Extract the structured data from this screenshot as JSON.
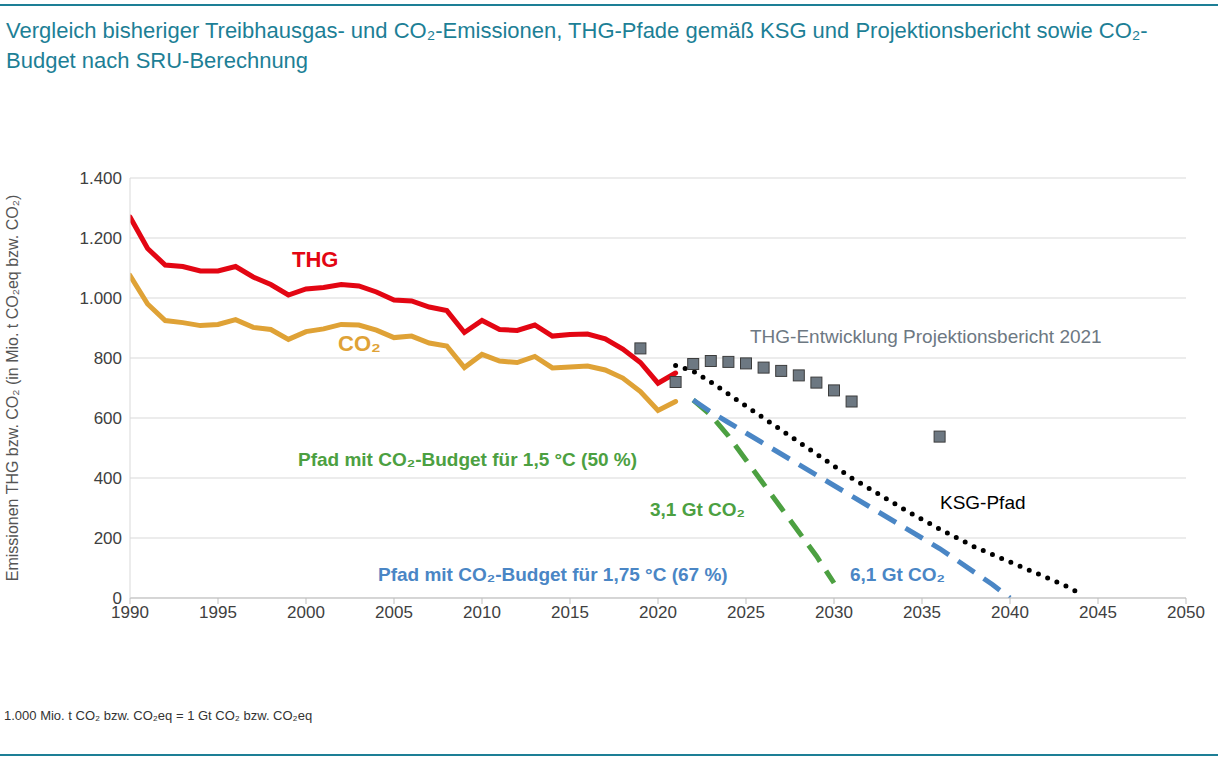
{
  "chart_data": {
    "type": "line",
    "title": "Vergleich bisheriger Treibhausgas- und CO₂-Emissionen, THG-Pfade gemäß KSG und Projektionsbericht sowie CO₂-Budget nach SRU-Berechnung",
    "y_label": "Emissionen THG bzw. CO₂ (in Mio. t CO₂eq bzw. CO₂)",
    "footnote": "1.000 Mio. t CO₂ bzw. CO₂eq = 1 Gt CO₂ bzw. CO₂eq",
    "xlim": [
      1990,
      2050
    ],
    "xticks": [
      1990,
      1995,
      2000,
      2005,
      2010,
      2015,
      2020,
      2025,
      2030,
      2035,
      2040,
      2045,
      2050
    ],
    "ylim": [
      0,
      1400
    ],
    "yticks": [
      0,
      200,
      400,
      600,
      800,
      {
        "value": 1000,
        "label": "1.000"
      },
      {
        "value": 1200,
        "label": "1.200"
      },
      {
        "value": 1400,
        "label": "1.400"
      }
    ],
    "grid": true,
    "series": [
      {
        "name": "THG",
        "type": "line",
        "line_style": "solid",
        "color": "#e30613",
        "x": [
          1990,
          1991,
          1992,
          1993,
          1994,
          1995,
          1996,
          1997,
          1998,
          1999,
          2000,
          2001,
          2002,
          2003,
          2004,
          2005,
          2006,
          2007,
          2008,
          2009,
          2010,
          2011,
          2012,
          2013,
          2014,
          2015,
          2016,
          2017,
          2018,
          2019,
          2020,
          2021
        ],
        "values": [
          1270,
          1165,
          1110,
          1105,
          1090,
          1090,
          1105,
          1070,
          1045,
          1010,
          1030,
          1035,
          1045,
          1040,
          1020,
          993,
          990,
          970,
          958,
          885,
          925,
          895,
          892,
          910,
          873,
          878,
          880,
          864,
          830,
          785,
          716,
          750
        ]
      },
      {
        "name": "CO₂",
        "type": "line",
        "line_style": "solid",
        "color": "#dfa236",
        "x": [
          1990,
          1991,
          1992,
          1993,
          1994,
          1995,
          1996,
          1997,
          1998,
          1999,
          2000,
          2001,
          2002,
          2003,
          2004,
          2005,
          2006,
          2007,
          2008,
          2009,
          2010,
          2011,
          2012,
          2013,
          2014,
          2015,
          2016,
          2017,
          2018,
          2019,
          2020,
          2021
        ],
        "values": [
          1075,
          980,
          925,
          918,
          908,
          912,
          928,
          902,
          895,
          862,
          888,
          897,
          912,
          910,
          893,
          868,
          873,
          850,
          840,
          768,
          812,
          790,
          785,
          805,
          767,
          770,
          773,
          760,
          733,
          688,
          625,
          655
        ]
      },
      {
        "name": "THG-Entwicklung Projektionsbericht 2021",
        "type": "scatter",
        "marker": "square",
        "color": "#6d7882",
        "x": [
          2019,
          2021,
          2022,
          2023,
          2024,
          2025,
          2026,
          2027,
          2028,
          2029,
          2030,
          2031,
          2036
        ],
        "values": [
          832,
          720,
          780,
          790,
          787,
          782,
          768,
          757,
          742,
          718,
          692,
          655,
          538
        ]
      },
      {
        "name": "KSG-Pfad",
        "type": "line",
        "line_style": "dotted",
        "color": "#000000",
        "x": [
          2021,
          2022,
          2023,
          2024,
          2025,
          2026,
          2027,
          2028,
          2029,
          2030,
          2031,
          2032,
          2033,
          2034,
          2035,
          2036,
          2037,
          2038,
          2039,
          2040,
          2041,
          2042,
          2043,
          2044
        ],
        "values": [
          775,
          756,
          720,
          680,
          640,
          600,
          560,
          520,
          480,
          440,
          400,
          365,
          330,
          295,
          262,
          230,
          200,
          170,
          145,
          120,
          95,
          70,
          45,
          15
        ]
      },
      {
        "name": "Pfad mit CO₂-Budget für 1,5 °C (50 %)",
        "budget_label": "3,1 Gt CO₂",
        "type": "line",
        "line_style": "dashed",
        "color": "#4ca041",
        "x": [
          2022,
          2023,
          2024,
          2025,
          2026,
          2027,
          2028,
          2029,
          2030
        ],
        "values": [
          660,
          610,
          540,
          460,
          380,
          300,
          220,
          140,
          50
        ]
      },
      {
        "name": "Pfad mit CO₂-Budget für 1,75 °C (67 %)",
        "budget_label": "6,1 Gt CO₂",
        "type": "line",
        "line_style": "dashed",
        "color": "#4a86c5",
        "x": [
          2022,
          2023,
          2024,
          2025,
          2026,
          2027,
          2028,
          2029,
          2030,
          2031,
          2032,
          2033,
          2034,
          2035,
          2036,
          2037,
          2038,
          2039,
          2040
        ],
        "values": [
          660,
          620,
          585,
          550,
          515,
          480,
          445,
          410,
          375,
          340,
          305,
          270,
          235,
          200,
          165,
          125,
          85,
          45,
          0
        ]
      }
    ]
  }
}
